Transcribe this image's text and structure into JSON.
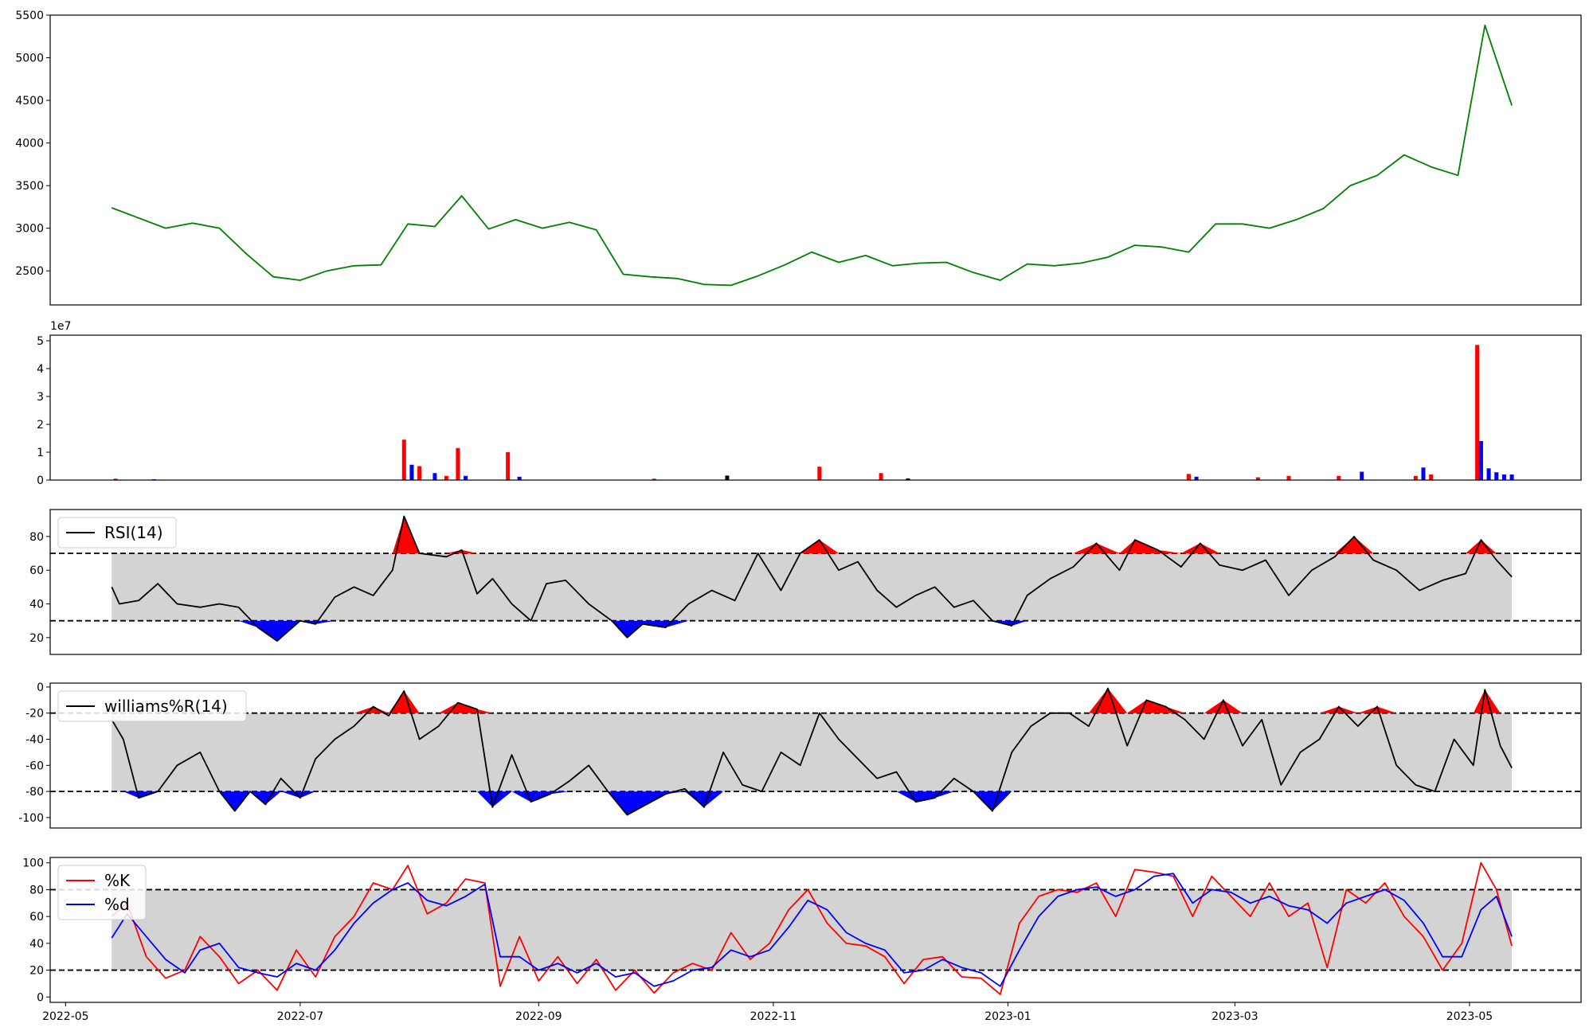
{
  "chart_data": [
    {
      "type": "line",
      "panel": "price",
      "yticks": [
        "2500",
        "3000",
        "3500",
        "4000",
        "4500",
        "5000",
        "5500"
      ],
      "ylim": [
        2100,
        5500
      ],
      "color": "#008000",
      "series": [
        {
          "x": [
            "2022-05-13",
            "2022-05-20",
            "2022-05-27",
            "2022-06-03",
            "2022-06-10",
            "2022-06-17",
            "2022-06-24",
            "2022-07-01",
            "2022-07-08",
            "2022-07-15",
            "2022-07-22",
            "2022-07-29",
            "2022-08-05",
            "2022-08-12",
            "2022-08-19",
            "2022-08-26",
            "2022-09-02",
            "2022-09-09",
            "2022-09-16",
            "2022-09-23",
            "2022-09-30",
            "2022-10-07",
            "2022-10-14",
            "2022-10-21",
            "2022-10-28",
            "2022-11-04",
            "2022-11-11",
            "2022-11-18",
            "2022-11-25",
            "2022-12-02",
            "2022-12-09",
            "2022-12-16",
            "2022-12-23",
            "2022-12-30",
            "2023-01-06",
            "2023-01-13",
            "2023-01-20",
            "2023-01-27",
            "2023-02-03",
            "2023-02-10",
            "2023-02-17",
            "2023-02-24",
            "2023-03-03",
            "2023-03-10",
            "2023-03-17",
            "2023-03-24",
            "2023-03-31",
            "2023-04-07",
            "2023-04-14",
            "2023-04-21",
            "2023-04-28",
            "2023-05-05",
            "2023-05-12"
          ],
          "values": [
            3240,
            3120,
            3000,
            3060,
            3000,
            2700,
            2430,
            2390,
            2500,
            2560,
            2570,
            3050,
            3020,
            3380,
            2990,
            3100,
            3000,
            3070,
            2980,
            2460,
            2430,
            2410,
            2340,
            2330,
            2440,
            2570,
            2720,
            2600,
            2680,
            2560,
            2590,
            2600,
            2480,
            2390,
            2580,
            2560,
            2590,
            2660,
            2800,
            2780,
            2720,
            3050,
            3050,
            3000,
            3100,
            3230,
            3500,
            3620,
            3860,
            3720,
            3620,
            5380,
            4440
          ]
        }
      ]
    },
    {
      "type": "bar",
      "panel": "volume",
      "scale_label": "1e7",
      "yticks": [
        "0",
        "1",
        "2",
        "3",
        "4",
        "5"
      ],
      "ylim": [
        0,
        5.2
      ],
      "series": [
        {
          "x": [
            "2022-05-14",
            "2022-05-24",
            "2022-07-28",
            "2022-07-30",
            "2022-08-01",
            "2022-08-05",
            "2022-08-08",
            "2022-08-11",
            "2022-08-13",
            "2022-08-24",
            "2022-08-27",
            "2022-10-01",
            "2022-10-20",
            "2022-11-13",
            "2022-11-29",
            "2022-12-06",
            "2023-02-17",
            "2023-02-19",
            "2023-03-07",
            "2023-03-15",
            "2023-03-28",
            "2023-04-03",
            "2023-04-17",
            "2023-04-19",
            "2023-04-21",
            "2023-05-03",
            "2023-05-04",
            "2023-05-06",
            "2023-05-08",
            "2023-05-10",
            "2023-05-12"
          ],
          "values": [
            0.05,
            0.03,
            1.45,
            0.55,
            0.5,
            0.25,
            0.15,
            1.15,
            0.15,
            1.0,
            0.12,
            0.05,
            0.16,
            0.48,
            0.25,
            0.06,
            0.22,
            0.12,
            0.1,
            0.15,
            0.15,
            0.3,
            0.15,
            0.45,
            0.2,
            4.85,
            1.4,
            0.42,
            0.28,
            0.2,
            0.2
          ],
          "colors": [
            "red",
            "blue",
            "red",
            "blue",
            "red",
            "blue",
            "red",
            "red",
            "blue",
            "red",
            "blue",
            "red",
            "black",
            "red",
            "red",
            "black",
            "red",
            "blue",
            "red",
            "red",
            "red",
            "blue",
            "red",
            "blue",
            "red",
            "red",
            "blue",
            "blue",
            "blue",
            "blue",
            "blue"
          ]
        }
      ]
    },
    {
      "type": "line",
      "panel": "rsi",
      "yticks": [
        "20",
        "40",
        "60",
        "80"
      ],
      "ylim": [
        10,
        96
      ],
      "bands": [
        30,
        70
      ],
      "legend": [
        "RSI(14)"
      ],
      "series": [
        {
          "name": "RSI(14)",
          "x": [
            "2022-05-13",
            "2022-05-15",
            "2022-05-20",
            "2022-05-25",
            "2022-05-30",
            "2022-06-05",
            "2022-06-10",
            "2022-06-15",
            "2022-06-20",
            "2022-06-25",
            "2022-07-01",
            "2022-07-05",
            "2022-07-10",
            "2022-07-15",
            "2022-07-20",
            "2022-07-25",
            "2022-07-28",
            "2022-08-01",
            "2022-08-08",
            "2022-08-12",
            "2022-08-16",
            "2022-08-20",
            "2022-08-25",
            "2022-08-30",
            "2022-09-03",
            "2022-09-08",
            "2022-09-14",
            "2022-09-20",
            "2022-09-24",
            "2022-09-28",
            "2022-10-04",
            "2022-10-10",
            "2022-10-16",
            "2022-10-22",
            "2022-10-28",
            "2022-11-03",
            "2022-11-08",
            "2022-11-13",
            "2022-11-18",
            "2022-11-23",
            "2022-11-28",
            "2022-12-03",
            "2022-12-08",
            "2022-12-13",
            "2022-12-18",
            "2022-12-23",
            "2022-12-28",
            "2023-01-02",
            "2023-01-06",
            "2023-01-12",
            "2023-01-18",
            "2023-01-24",
            "2023-01-30",
            "2023-02-03",
            "2023-02-09",
            "2023-02-15",
            "2023-02-20",
            "2023-02-25",
            "2023-03-03",
            "2023-03-09",
            "2023-03-15",
            "2023-03-21",
            "2023-03-27",
            "2023-04-01",
            "2023-04-06",
            "2023-04-12",
            "2023-04-18",
            "2023-04-24",
            "2023-04-30",
            "2023-05-04",
            "2023-05-08",
            "2023-05-12"
          ],
          "values": [
            50,
            40,
            42,
            52,
            40,
            38,
            40,
            38,
            26,
            18,
            30,
            28,
            44,
            50,
            45,
            60,
            92,
            70,
            68,
            72,
            46,
            55,
            40,
            30,
            52,
            54,
            40,
            30,
            20,
            28,
            26,
            40,
            48,
            42,
            70,
            48,
            70,
            78,
            60,
            65,
            48,
            38,
            45,
            50,
            38,
            42,
            30,
            27,
            45,
            55,
            62,
            76,
            60,
            78,
            72,
            62,
            76,
            63,
            60,
            66,
            45,
            60,
            68,
            80,
            66,
            60,
            48,
            54,
            58,
            78,
            66,
            56
          ]
        }
      ]
    },
    {
      "type": "line",
      "panel": "williams",
      "yticks": [
        "-100",
        "-80",
        "-60",
        "-40",
        "-20",
        "0"
      ],
      "ylim": [
        -108,
        3
      ],
      "bands": [
        -80,
        -20
      ],
      "legend": [
        "williams%R(14)"
      ],
      "series": [
        {
          "name": "williams%R(14)",
          "x": [
            "2022-05-13",
            "2022-05-16",
            "2022-05-20",
            "2022-05-25",
            "2022-05-30",
            "2022-06-05",
            "2022-06-10",
            "2022-06-14",
            "2022-06-18",
            "2022-06-22",
            "2022-06-26",
            "2022-07-01",
            "2022-07-05",
            "2022-07-10",
            "2022-07-15",
            "2022-07-20",
            "2022-07-24",
            "2022-07-28",
            "2022-08-01",
            "2022-08-06",
            "2022-08-11",
            "2022-08-16",
            "2022-08-20",
            "2022-08-25",
            "2022-08-30",
            "2022-09-04",
            "2022-09-09",
            "2022-09-14",
            "2022-09-19",
            "2022-09-24",
            "2022-09-29",
            "2022-10-04",
            "2022-10-09",
            "2022-10-14",
            "2022-10-19",
            "2022-10-24",
            "2022-10-29",
            "2022-11-03",
            "2022-11-08",
            "2022-11-13",
            "2022-11-18",
            "2022-11-23",
            "2022-11-28",
            "2022-12-03",
            "2022-12-08",
            "2022-12-13",
            "2022-12-18",
            "2022-12-23",
            "2022-12-28",
            "2023-01-02",
            "2023-01-07",
            "2023-01-12",
            "2023-01-17",
            "2023-01-22",
            "2023-01-27",
            "2023-02-01",
            "2023-02-06",
            "2023-02-11",
            "2023-02-16",
            "2023-02-21",
            "2023-02-26",
            "2023-03-03",
            "2023-03-08",
            "2023-03-13",
            "2023-03-18",
            "2023-03-23",
            "2023-03-28",
            "2023-04-02",
            "2023-04-07",
            "2023-04-12",
            "2023-04-17",
            "2023-04-22",
            "2023-04-27",
            "2023-05-02",
            "2023-05-05",
            "2023-05-09",
            "2023-05-12"
          ],
          "values": [
            -25,
            -40,
            -85,
            -80,
            -60,
            -50,
            -80,
            -95,
            -80,
            -90,
            -70,
            -85,
            -55,
            -40,
            -30,
            -15,
            -22,
            -3,
            -40,
            -30,
            -12,
            -17,
            -92,
            -52,
            -88,
            -82,
            -72,
            -60,
            -80,
            -98,
            -90,
            -82,
            -78,
            -92,
            -50,
            -75,
            -80,
            -50,
            -60,
            -20,
            -40,
            -55,
            -70,
            -65,
            -88,
            -85,
            -70,
            -80,
            -95,
            -50,
            -30,
            -20,
            -20,
            -30,
            -1,
            -45,
            -10,
            -15,
            -25,
            -40,
            -10,
            -45,
            -25,
            -75,
            -50,
            -40,
            -15,
            -30,
            -15,
            -60,
            -75,
            -80,
            -40,
            -60,
            -2,
            -45,
            -62
          ]
        }
      ]
    },
    {
      "type": "line",
      "panel": "stochastic",
      "yticks": [
        "0",
        "20",
        "40",
        "60",
        "80",
        "100"
      ],
      "ylim": [
        -4,
        104
      ],
      "bands": [
        20,
        80
      ],
      "legend": [
        "%K",
        "%d"
      ],
      "xticks": [
        "2022-05",
        "2022-07",
        "2022-09",
        "2022-11",
        "2023-01",
        "2023-03",
        "2023-05"
      ],
      "xlim": [
        "2022-04-27",
        "2023-05-30"
      ],
      "series": [
        {
          "name": "%K",
          "color": "red",
          "x": [
            "2022-05-13",
            "2022-05-17",
            "2022-05-22",
            "2022-05-27",
            "2022-06-01",
            "2022-06-05",
            "2022-06-10",
            "2022-06-15",
            "2022-06-20",
            "2022-06-25",
            "2022-06-30",
            "2022-07-05",
            "2022-07-10",
            "2022-07-15",
            "2022-07-20",
            "2022-07-25",
            "2022-07-29",
            "2022-08-03",
            "2022-08-08",
            "2022-08-13",
            "2022-08-18",
            "2022-08-22",
            "2022-08-27",
            "2022-09-01",
            "2022-09-06",
            "2022-09-11",
            "2022-09-16",
            "2022-09-21",
            "2022-09-26",
            "2022-10-01",
            "2022-10-06",
            "2022-10-11",
            "2022-10-16",
            "2022-10-21",
            "2022-10-26",
            "2022-10-31",
            "2022-11-05",
            "2022-11-10",
            "2022-11-15",
            "2022-11-20",
            "2022-11-25",
            "2022-11-30",
            "2022-12-05",
            "2022-12-10",
            "2022-12-15",
            "2022-12-20",
            "2022-12-25",
            "2022-12-30",
            "2023-01-04",
            "2023-01-09",
            "2023-01-14",
            "2023-01-19",
            "2023-01-24",
            "2023-01-29",
            "2023-02-03",
            "2023-02-08",
            "2023-02-13",
            "2023-02-18",
            "2023-02-23",
            "2023-02-28",
            "2023-03-05",
            "2023-03-10",
            "2023-03-15",
            "2023-03-20",
            "2023-03-25",
            "2023-03-30",
            "2023-04-04",
            "2023-04-09",
            "2023-04-14",
            "2023-04-19",
            "2023-04-24",
            "2023-04-29",
            "2023-05-04",
            "2023-05-08",
            "2023-05-12"
          ],
          "values": [
            60,
            70,
            30,
            14,
            20,
            45,
            30,
            10,
            20,
            5,
            35,
            15,
            45,
            60,
            85,
            80,
            98,
            62,
            70,
            88,
            85,
            8,
            45,
            12,
            30,
            10,
            28,
            5,
            20,
            3,
            18,
            25,
            20,
            48,
            28,
            40,
            65,
            80,
            55,
            40,
            38,
            30,
            10,
            28,
            30,
            15,
            14,
            2,
            55,
            75,
            80,
            78,
            85,
            60,
            95,
            93,
            90,
            60,
            90,
            75,
            60,
            85,
            60,
            70,
            22,
            80,
            70,
            85,
            60,
            45,
            20,
            40,
            100,
            80,
            38
          ]
        },
        {
          "name": "%d",
          "color": "blue",
          "x": [
            "2022-05-13",
            "2022-05-17",
            "2022-05-22",
            "2022-05-27",
            "2022-06-01",
            "2022-06-05",
            "2022-06-10",
            "2022-06-15",
            "2022-06-20",
            "2022-06-25",
            "2022-06-30",
            "2022-07-05",
            "2022-07-10",
            "2022-07-15",
            "2022-07-20",
            "2022-07-25",
            "2022-07-29",
            "2022-08-03",
            "2022-08-08",
            "2022-08-13",
            "2022-08-18",
            "2022-08-22",
            "2022-08-27",
            "2022-09-01",
            "2022-09-06",
            "2022-09-11",
            "2022-09-16",
            "2022-09-21",
            "2022-09-26",
            "2022-10-01",
            "2022-10-06",
            "2022-10-11",
            "2022-10-16",
            "2022-10-21",
            "2022-10-26",
            "2022-10-31",
            "2022-11-05",
            "2022-11-10",
            "2022-11-15",
            "2022-11-20",
            "2022-11-25",
            "2022-11-30",
            "2022-12-05",
            "2022-12-10",
            "2022-12-15",
            "2022-12-20",
            "2022-12-25",
            "2022-12-30",
            "2023-01-04",
            "2023-01-09",
            "2023-01-14",
            "2023-01-19",
            "2023-01-24",
            "2023-01-29",
            "2023-02-03",
            "2023-02-08",
            "2023-02-13",
            "2023-02-18",
            "2023-02-23",
            "2023-02-28",
            "2023-03-05",
            "2023-03-10",
            "2023-03-15",
            "2023-03-20",
            "2023-03-25",
            "2023-03-30",
            "2023-04-04",
            "2023-04-09",
            "2023-04-14",
            "2023-04-19",
            "2023-04-24",
            "2023-04-29",
            "2023-05-04",
            "2023-05-08",
            "2023-05-12"
          ],
          "values": [
            44,
            62,
            45,
            28,
            18,
            35,
            40,
            22,
            18,
            15,
            25,
            20,
            35,
            55,
            70,
            80,
            85,
            72,
            68,
            75,
            84,
            30,
            30,
            20,
            25,
            18,
            25,
            15,
            18,
            8,
            12,
            20,
            22,
            35,
            30,
            35,
            52,
            72,
            65,
            48,
            40,
            35,
            18,
            20,
            28,
            22,
            18,
            8,
            35,
            60,
            75,
            80,
            82,
            75,
            80,
            90,
            92,
            70,
            80,
            78,
            70,
            75,
            68,
            65,
            55,
            70,
            75,
            80,
            72,
            55,
            30,
            30,
            65,
            75,
            45
          ]
        }
      ]
    }
  ]
}
